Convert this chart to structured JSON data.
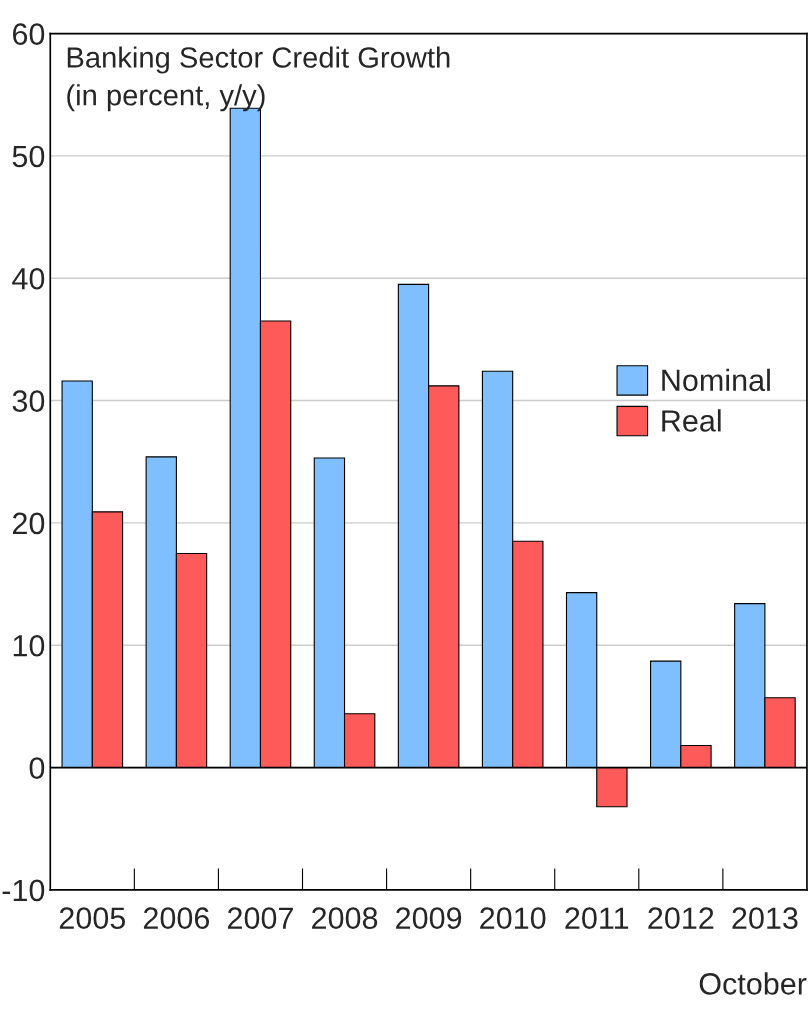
{
  "chart_data": {
    "type": "bar",
    "title": "Banking Sector Credit Growth\n(in percent, y/y)",
    "categories": [
      "2005",
      "2006",
      "2007",
      "2008",
      "2009",
      "2010",
      "2011",
      "2012",
      "2013"
    ],
    "series": [
      {
        "name": "Nominal",
        "color": "#7fbfff",
        "values": [
          31.6,
          25.4,
          53.9,
          25.3,
          39.5,
          32.4,
          14.3,
          8.7,
          13.4
        ]
      },
      {
        "name": "Real",
        "color": "#ff5a5a",
        "values": [
          20.9,
          17.5,
          36.5,
          4.4,
          31.2,
          18.5,
          -3.2,
          1.8,
          5.7
        ]
      }
    ],
    "ylim": [
      -10,
      60
    ],
    "yticks": [
      {
        "value": -10,
        "label": "-10"
      },
      0,
      10,
      20,
      30,
      40,
      50,
      60
    ],
    "grid": "y",
    "legend": "right",
    "ref_lines": [
      {
        "axis": "y",
        "value": 0,
        "color": "#000000"
      }
    ],
    "annotations": [
      "October"
    ]
  }
}
